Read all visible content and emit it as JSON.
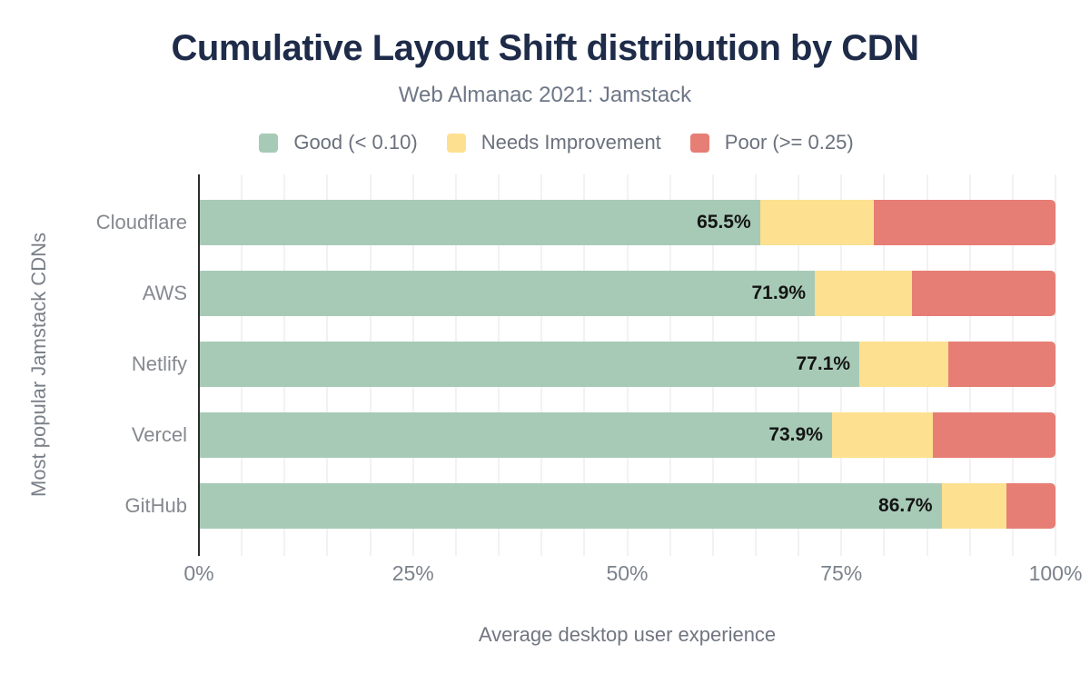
{
  "header": {
    "title": "Cumulative Layout Shift distribution by CDN",
    "subtitle": "Web Almanac 2021: Jamstack"
  },
  "legend": {
    "items": [
      {
        "label": "Good (< 0.10)",
        "color": "#a7cab7",
        "icon": "good-swatch-icon"
      },
      {
        "label": "Needs Improvement",
        "color": "#fde090",
        "icon": "needs-improvement-swatch-icon"
      },
      {
        "label": "Poor (>= 0.25)",
        "color": "#e77e75",
        "icon": "poor-swatch-icon"
      }
    ]
  },
  "chart_data": {
    "type": "bar",
    "orientation": "horizontal",
    "stacked": true,
    "title": "Cumulative Layout Shift distribution by CDN",
    "subtitle": "Web Almanac 2021: Jamstack",
    "categories": [
      "Cloudflare",
      "AWS",
      "Netlify",
      "Vercel",
      "GitHub"
    ],
    "series": [
      {
        "name": "Good (< 0.10)",
        "key": "good",
        "color": "#a7cab7",
        "values": [
          65.5,
          71.9,
          77.1,
          73.9,
          86.7
        ]
      },
      {
        "name": "Needs Improvement",
        "key": "needs-improvement",
        "color": "#fde090",
        "values": [
          13.3,
          11.3,
          10.4,
          11.8,
          7.6
        ]
      },
      {
        "name": "Poor (>= 0.25)",
        "key": "poor",
        "color": "#e77e75",
        "values": [
          21.2,
          16.8,
          12.5,
          14.3,
          5.7
        ]
      }
    ],
    "bar_labels": [
      "65.5%",
      "71.9%",
      "77.1%",
      "73.9%",
      "86.7%"
    ],
    "xlabel": "Average desktop user experience",
    "ylabel": "Most popular Jamstack CDNs",
    "x_ticks": [
      "0%",
      "25%",
      "50%",
      "75%",
      "100%"
    ],
    "xlim": [
      0,
      100
    ],
    "grid_interval_pct": 5,
    "legend_position": "top"
  },
  "colors": {
    "title": "#1e2b49",
    "subtitle": "#6e7787",
    "axis_text": "#7b828b",
    "axis_line": "#2c2c2c",
    "gridline": "#f2f2f2",
    "bar_value_label": "#141414",
    "background": "#ffffff"
  }
}
